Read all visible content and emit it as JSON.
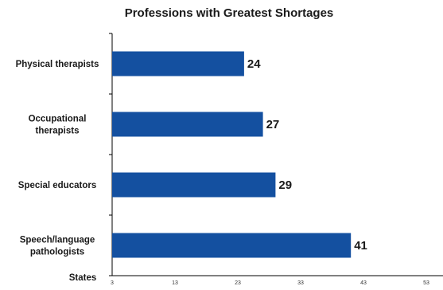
{
  "chart_data": {
    "type": "bar",
    "orientation": "horizontal",
    "title": "Professions with Greatest Shortages",
    "xlabel": "States",
    "ylabel": "",
    "categories": [
      [
        "Physical therapists"
      ],
      [
        "Occupational",
        "therapists"
      ],
      [
        "Special educators"
      ],
      [
        "Speech/language",
        "pathologists"
      ]
    ],
    "values": [
      24,
      27,
      29,
      41
    ],
    "xlim": [
      3,
      53
    ],
    "x_ticks": [
      3,
      13,
      23,
      33,
      43,
      53
    ],
    "grid": false,
    "legend": "none",
    "bar_color": "#1450a0"
  }
}
